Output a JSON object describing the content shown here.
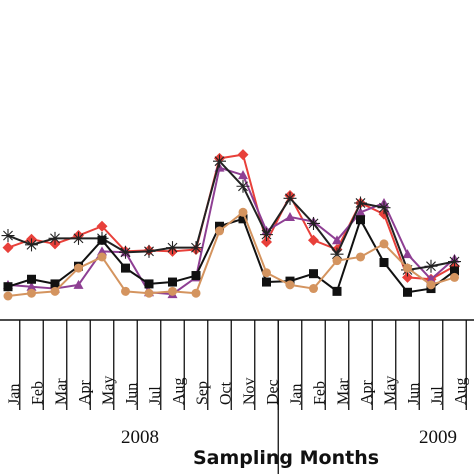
{
  "chart_data": {
    "type": "line",
    "xlabel": "Sampling Months",
    "categories": [
      "Jan",
      "Feb",
      "Mar",
      "Apr",
      "May",
      "Jun",
      "Jul",
      "Aug",
      "Sep",
      "Oct",
      "Nov",
      "Dec",
      "Jan",
      "Feb",
      "Mar",
      "Apr",
      "May",
      "Jun",
      "Jul",
      "Aug"
    ],
    "years": [
      {
        "label": "2008",
        "from_index": 0,
        "to_index": 11
      },
      {
        "label": "2009",
        "from_index": 12,
        "to_index": 19
      }
    ],
    "grid": false,
    "legend": "none",
    "y_axis_visible": false,
    "series": [
      {
        "color": "#e8403a",
        "marker": "diamond",
        "values": [
          52,
          61,
          56,
          65,
          75,
          48,
          49,
          48,
          50,
          148,
          152,
          58,
          108,
          60,
          50,
          100,
          88,
          20,
          18,
          32
        ]
      },
      {
        "color": "#8e3f93",
        "marker": "triangle",
        "values": [
          12,
          10,
          8,
          12,
          48,
          47,
          4,
          2,
          20,
          138,
          130,
          70,
          85,
          80,
          60,
          90,
          100,
          45,
          18,
          40
        ]
      },
      {
        "color": "#222222",
        "marker": "star",
        "values": [
          65,
          55,
          62,
          62,
          62,
          47,
          48,
          52,
          52,
          145,
          118,
          66,
          105,
          78,
          45,
          100,
          95,
          28,
          32,
          37
        ]
      },
      {
        "color": "#111111",
        "marker": "square",
        "values": [
          10,
          18,
          13,
          32,
          60,
          30,
          13,
          15,
          22,
          75,
          83,
          15,
          16,
          24,
          5,
          82,
          36,
          4,
          8,
          27
        ]
      },
      {
        "color": "#d4945f",
        "marker": "circle",
        "values": [
          0,
          3,
          5,
          30,
          42,
          5,
          3,
          5,
          3,
          70,
          90,
          25,
          12,
          8,
          38,
          42,
          56,
          30,
          12,
          20
        ]
      }
    ]
  }
}
